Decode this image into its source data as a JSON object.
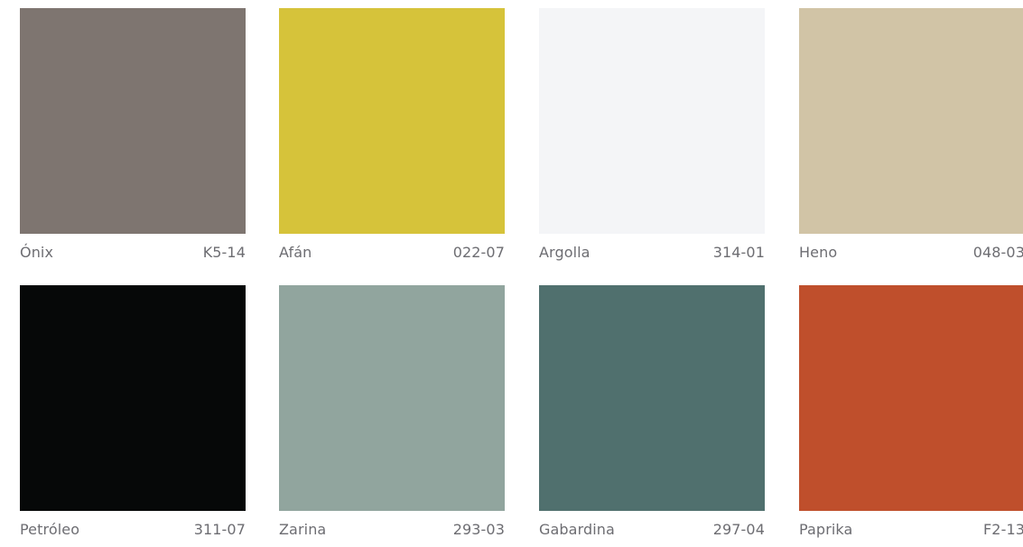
{
  "swatches": [
    {
      "name": "Ónix",
      "code": "K5-14",
      "color": "#7e7570"
    },
    {
      "name": "Afán",
      "code": "022-07",
      "color": "#d6c33a"
    },
    {
      "name": "Argolla",
      "code": "314-01",
      "color": "#f4f5f7"
    },
    {
      "name": "Heno",
      "code": "048-03",
      "color": "#d1c4a6"
    },
    {
      "name": "Petróleo",
      "code": "311-07",
      "color": "#060808"
    },
    {
      "name": "Zarina",
      "code": "293-03",
      "color": "#91a59e"
    },
    {
      "name": "Gabardina",
      "code": "297-04",
      "color": "#50706e"
    },
    {
      "name": "Paprika",
      "code": "F2-13",
      "color": "#bf4f2c"
    }
  ]
}
